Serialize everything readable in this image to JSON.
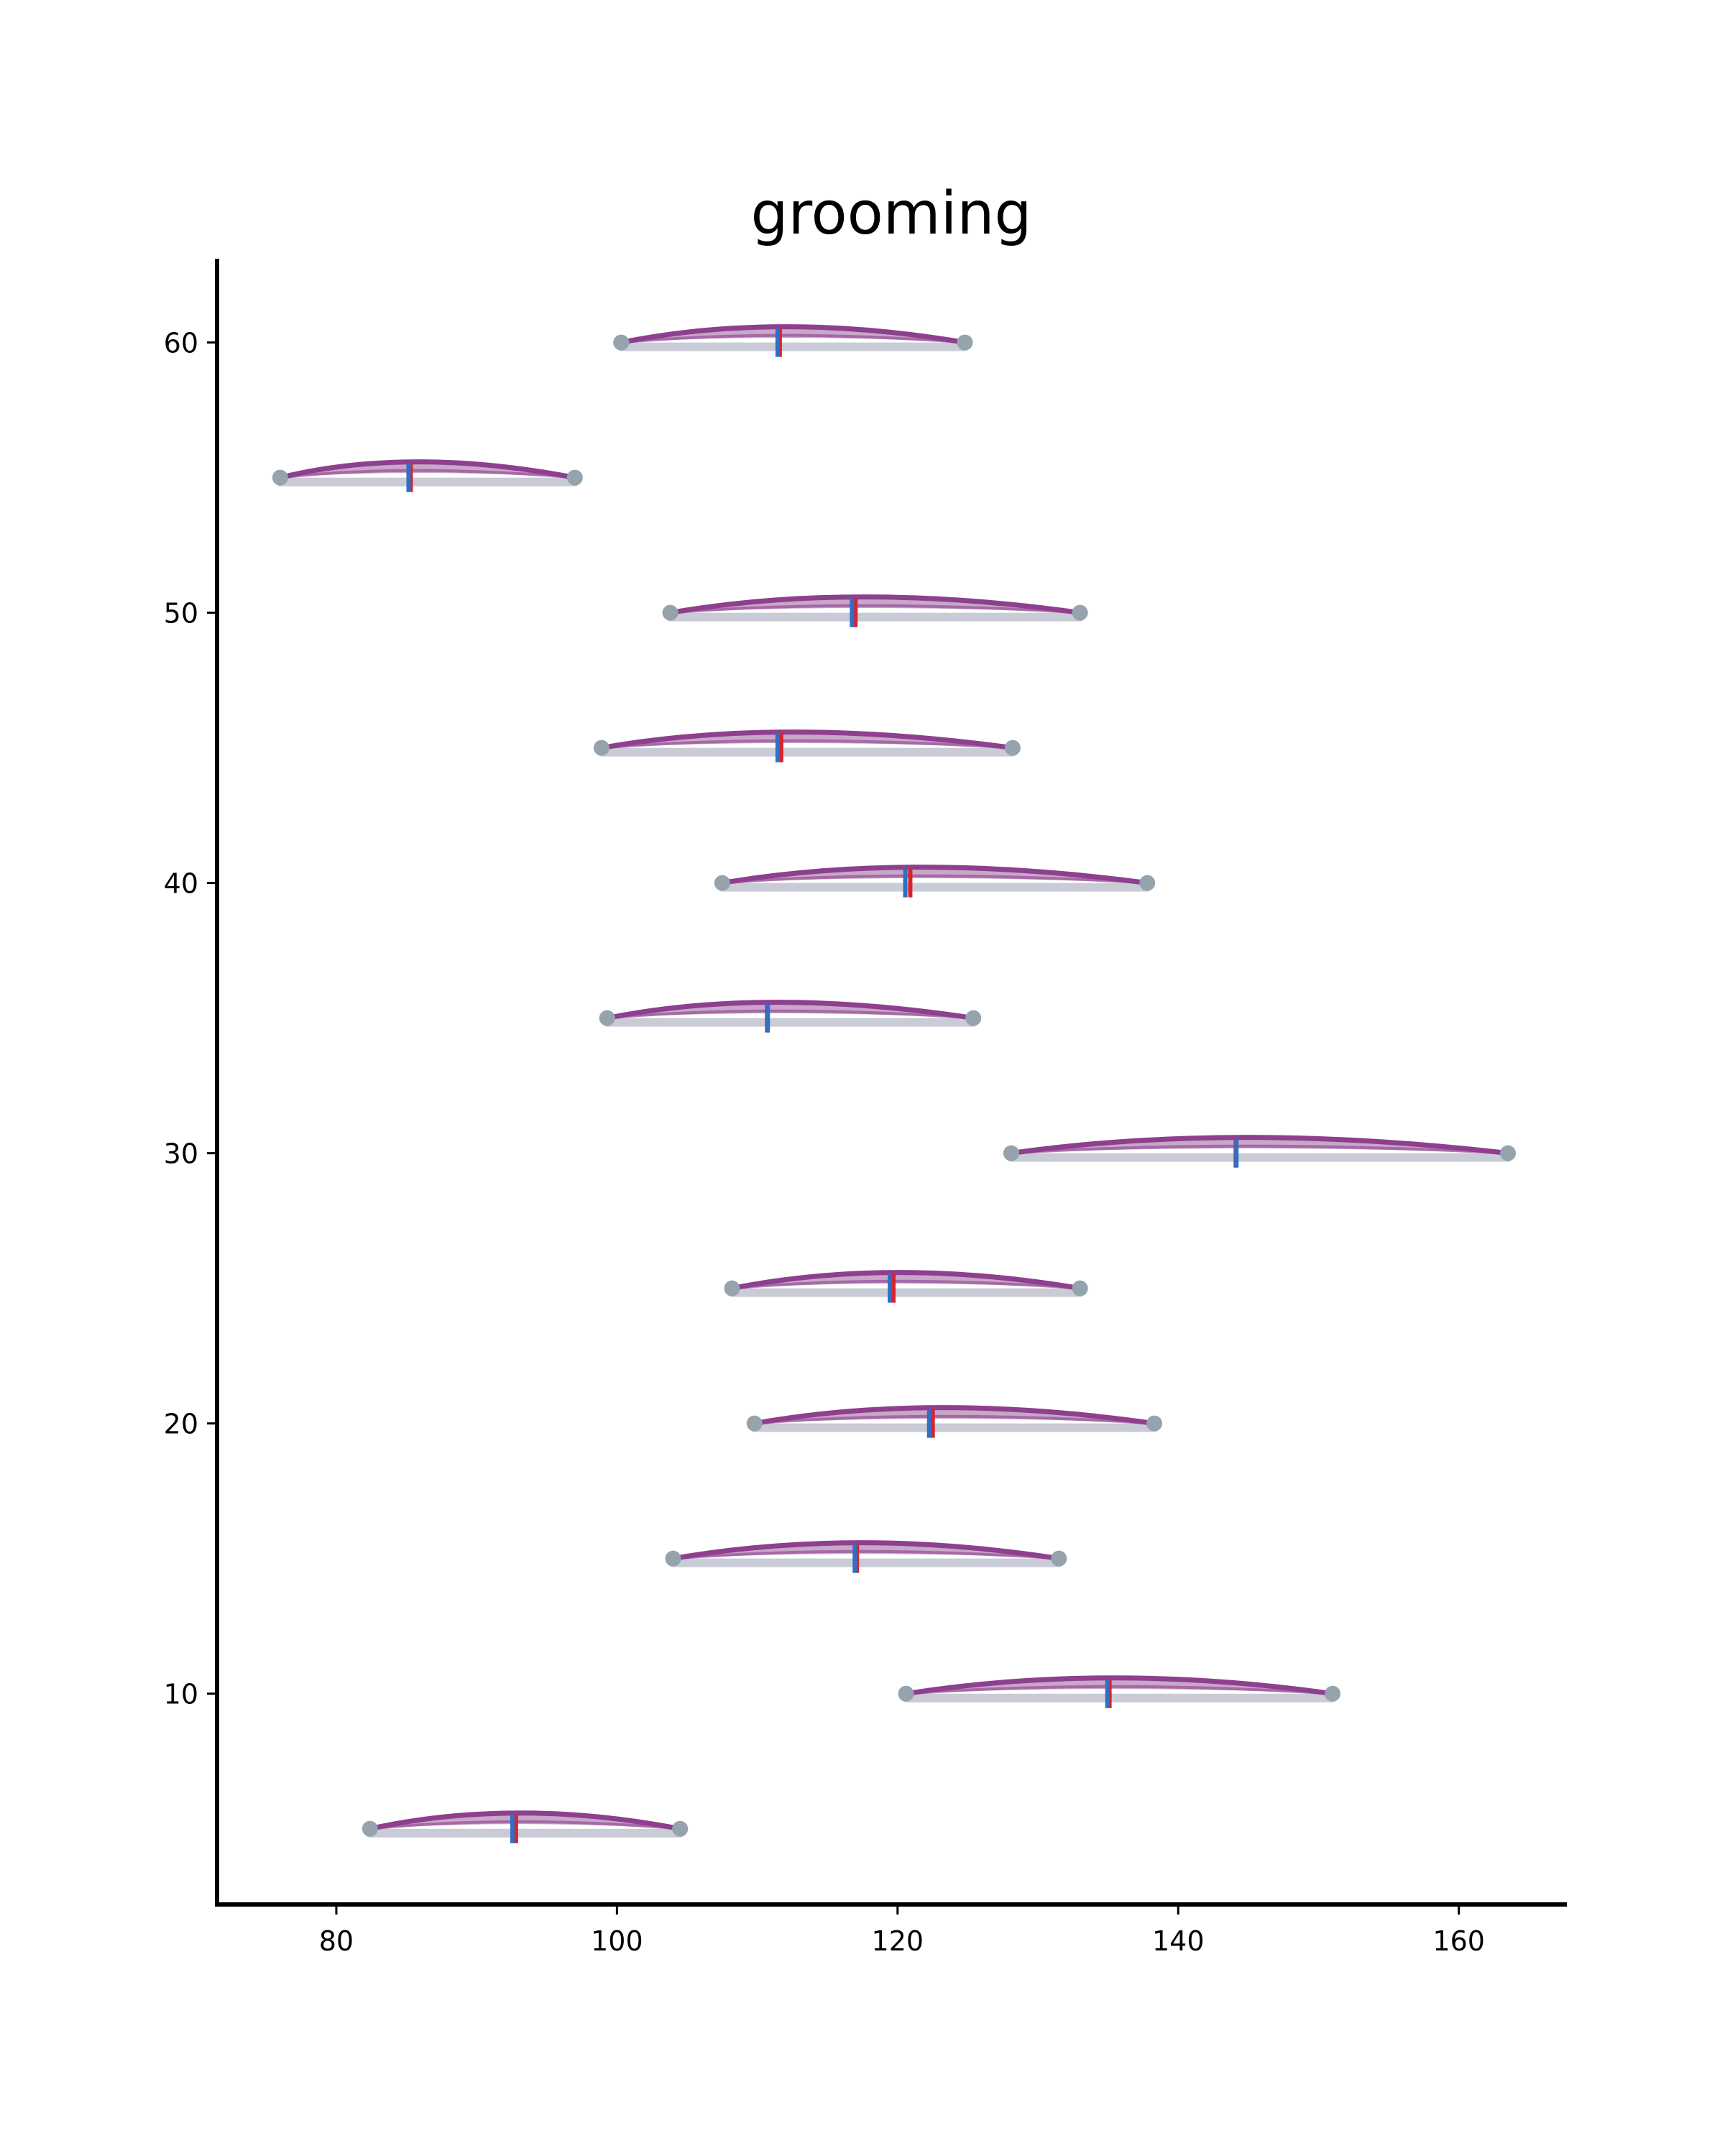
{
  "chart_data": {
    "type": "violin",
    "title": "grooming",
    "xlabel": "",
    "ylabel": "",
    "xlim": [
      71.5,
      167.7
    ],
    "ylim": [
      2.2,
      63.1
    ],
    "x_ticks": [
      80,
      100,
      120,
      140,
      160
    ],
    "y_ticks": [
      10,
      20,
      30,
      40,
      50,
      60
    ],
    "grid": false,
    "colors": {
      "violin": "#8e3f8e",
      "violin_fill": "#b58ab5",
      "whisker": "#c9ccd6",
      "endpoint": "#95a3ad",
      "median": "#d6242d",
      "mean": "#2f6fc6",
      "axis": "#000000"
    },
    "rows": [
      {
        "y": 60,
        "min": 100.3,
        "max": 124.8,
        "median": 111.5,
        "mean": 111.5
      },
      {
        "y": 55,
        "min": 76.0,
        "max": 97.0,
        "median": 85.2,
        "mean": 85.2
      },
      {
        "y": 50,
        "min": 103.8,
        "max": 133.0,
        "median": 116.9,
        "mean": 116.8
      },
      {
        "y": 45,
        "min": 98.9,
        "max": 128.2,
        "median": 111.6,
        "mean": 111.5
      },
      {
        "y": 40,
        "min": 107.5,
        "max": 137.8,
        "median": 120.8,
        "mean": 120.6
      },
      {
        "y": 35,
        "min": 99.3,
        "max": 125.4,
        "median": 110.6,
        "mean": 110.8
      },
      {
        "y": 30,
        "min": 128.1,
        "max": 163.5,
        "median": 144.0,
        "mean": 144.2
      },
      {
        "y": 25,
        "min": 108.2,
        "max": 133.0,
        "median": 119.6,
        "mean": 119.5
      },
      {
        "y": 20,
        "min": 109.8,
        "max": 138.3,
        "median": 122.4,
        "mean": 122.3
      },
      {
        "y": 15,
        "min": 104.0,
        "max": 131.5,
        "median": 117.0,
        "mean": 117.0
      },
      {
        "y": 10,
        "min": 120.6,
        "max": 151.0,
        "median": 135.0,
        "mean": 135.0
      },
      {
        "y": 5,
        "min": 82.4,
        "max": 104.5,
        "median": 92.7,
        "mean": 92.6
      }
    ]
  }
}
